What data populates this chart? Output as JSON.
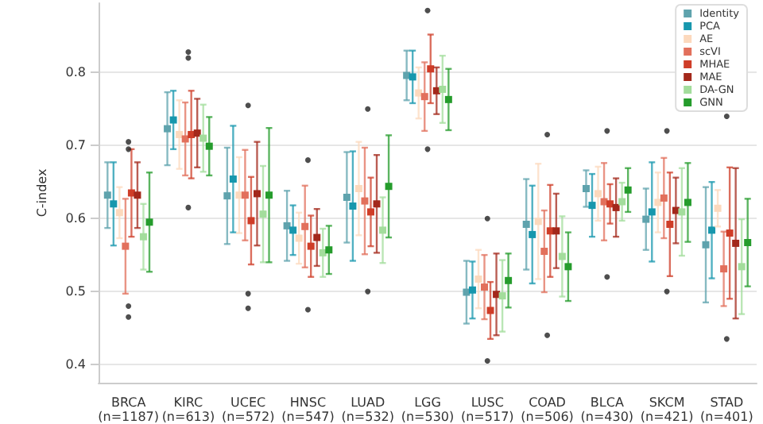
{
  "chart_data": {
    "type": "scatter",
    "ylabel": "C-index",
    "categories": [
      "BRCA\n(n=1187)",
      "KIRC\n(n=613)",
      "UCEC\n(n=572)",
      "HNSC\n(n=547)",
      "LUAD\n(n=532)",
      "LGG\n(n=530)",
      "LUSC\n(n=517)",
      "COAD\n(n=506)",
      "BLCA\n(n=430)",
      "SKCM\n(n=421)",
      "STAD\n(n=401)"
    ],
    "ylim": [
      0.375,
      0.895
    ],
    "yticks": [
      0.4,
      0.5,
      0.6,
      0.7,
      0.8
    ],
    "grid": "y",
    "legend": "top right",
    "marker": "square",
    "series": [
      {
        "name": "Identity",
        "color": "#5fa3ad",
        "values": [
          0.632,
          0.723,
          0.631,
          0.59,
          0.629,
          0.796,
          0.499,
          0.592,
          0.641,
          0.599,
          0.564
        ],
        "errors": [
          0.045,
          0.05,
          0.066,
          0.048,
          0.062,
          0.034,
          0.043,
          0.062,
          0.025,
          0.042,
          0.079
        ]
      },
      {
        "name": "PCA",
        "color": "#1797ad",
        "values": [
          0.62,
          0.735,
          0.654,
          0.584,
          0.617,
          0.794,
          0.502,
          0.578,
          0.618,
          0.609,
          0.584
        ],
        "errors": [
          0.057,
          0.04,
          0.073,
          0.034,
          0.075,
          0.036,
          0.039,
          0.067,
          0.043,
          0.068,
          0.066
        ]
      },
      {
        "name": "AE",
        "color": "#fcd9bd",
        "values": [
          0.608,
          0.715,
          0.632,
          0.573,
          0.641,
          0.772,
          0.517,
          0.596,
          0.634,
          0.622,
          0.614
        ],
        "errors": [
          0.035,
          0.047,
          0.052,
          0.035,
          0.064,
          0.035,
          0.04,
          0.079,
          0.037,
          0.041,
          0.025
        ]
      },
      {
        "name": "scVI",
        "color": "#e2705c",
        "values": [
          0.562,
          0.709,
          0.632,
          0.589,
          0.624,
          0.767,
          0.506,
          0.555,
          0.623,
          0.628,
          0.531
        ],
        "errors": [
          0.065,
          0.05,
          0.062,
          0.056,
          0.073,
          0.047,
          0.044,
          0.056,
          0.053,
          0.055,
          0.051
        ]
      },
      {
        "name": "MHAE",
        "color": "#cf3d28",
        "values": [
          0.635,
          0.715,
          0.597,
          0.562,
          0.609,
          0.805,
          0.474,
          0.583,
          0.62,
          0.592,
          0.58
        ],
        "errors": [
          0.06,
          0.06,
          0.06,
          0.042,
          0.047,
          0.047,
          0.039,
          0.063,
          0.027,
          0.071,
          0.09
        ]
      },
      {
        "name": "MAE",
        "color": "#a3281b",
        "values": [
          0.632,
          0.717,
          0.634,
          0.574,
          0.62,
          0.775,
          0.496,
          0.583,
          0.615,
          0.611,
          0.566
        ],
        "errors": [
          0.045,
          0.047,
          0.071,
          0.039,
          0.067,
          0.032,
          0.056,
          0.051,
          0.04,
          0.045,
          0.103
        ]
      },
      {
        "name": "DA-GN",
        "color": "#a3dd9c",
        "values": [
          0.575,
          0.71,
          0.606,
          0.553,
          0.584,
          0.777,
          0.494,
          0.548,
          0.623,
          0.609,
          0.534
        ],
        "errors": [
          0.045,
          0.046,
          0.066,
          0.033,
          0.045,
          0.046,
          0.049,
          0.055,
          0.026,
          0.06,
          0.065
        ]
      },
      {
        "name": "GNN",
        "color": "#259c2c",
        "values": [
          0.595,
          0.699,
          0.632,
          0.557,
          0.644,
          0.763,
          0.515,
          0.534,
          0.639,
          0.622,
          0.567
        ],
        "errors": [
          0.068,
          0.04,
          0.092,
          0.033,
          0.07,
          0.042,
          0.037,
          0.047,
          0.03,
          0.054,
          0.06
        ]
      },
      {
        "type": "scatter",
        "marker": "circle",
        "color": "#222222",
        "x": [
          "BRCA\n(n=1187)",
          "BRCA\n(n=1187)",
          "BRCA\n(n=1187)",
          "BRCA\n(n=1187)",
          "KIRC\n(n=613)",
          "KIRC\n(n=613)",
          "KIRC\n(n=613)",
          "UCEC\n(n=572)",
          "UCEC\n(n=572)",
          "UCEC\n(n=572)",
          "HNSC\n(n=547)",
          "HNSC\n(n=547)",
          "LUAD\n(n=532)",
          "LUAD\n(n=532)",
          "LGG\n(n=530)",
          "LGG\n(n=530)",
          "LUSC\n(n=517)",
          "LUSC\n(n=517)",
          "COAD\n(n=506)",
          "COAD\n(n=506)",
          "BLCA\n(n=430)",
          "BLCA\n(n=430)",
          "SKCM\n(n=421)",
          "SKCM\n(n=421)",
          "STAD\n(n=401)",
          "STAD\n(n=401)"
        ],
        "values": [
          0.705,
          0.695,
          0.48,
          0.465,
          0.828,
          0.82,
          0.615,
          0.755,
          0.497,
          0.477,
          0.68,
          0.475,
          0.75,
          0.5,
          0.885,
          0.695,
          0.6,
          0.405,
          0.715,
          0.44,
          0.72,
          0.52,
          0.72,
          0.5,
          0.74,
          0.435
        ]
      }
    ]
  }
}
